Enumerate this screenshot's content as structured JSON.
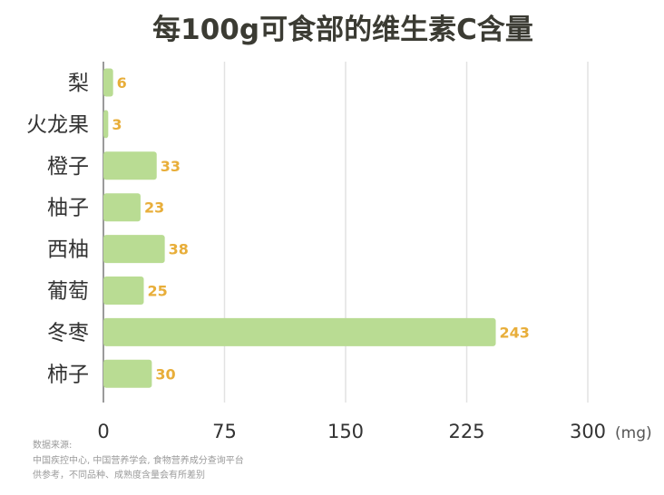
{
  "chart_data": {
    "type": "bar",
    "orientation": "horizontal",
    "title": "每100g可食部的维生素C含量",
    "categories": [
      "梨",
      "火龙果",
      "橙子",
      "柚子",
      "西柚",
      "葡萄",
      "冬枣",
      "柿子"
    ],
    "values": [
      6,
      3,
      33,
      23,
      38,
      25,
      243,
      30
    ],
    "xlim": [
      0,
      300
    ],
    "x_ticks": [
      "0",
      "75",
      "150",
      "225",
      "300"
    ],
    "x_unit": "(mg)",
    "grid": true,
    "bar_color": "#b9dc93",
    "label_color": "#e8ae3a"
  },
  "source_note": {
    "line1": "数据来源:",
    "line2": "中国疾控中心, 中国营养学会, 食物营养成分查询平台",
    "line3": "供参考，不同品种、成熟度含量会有所差别"
  }
}
